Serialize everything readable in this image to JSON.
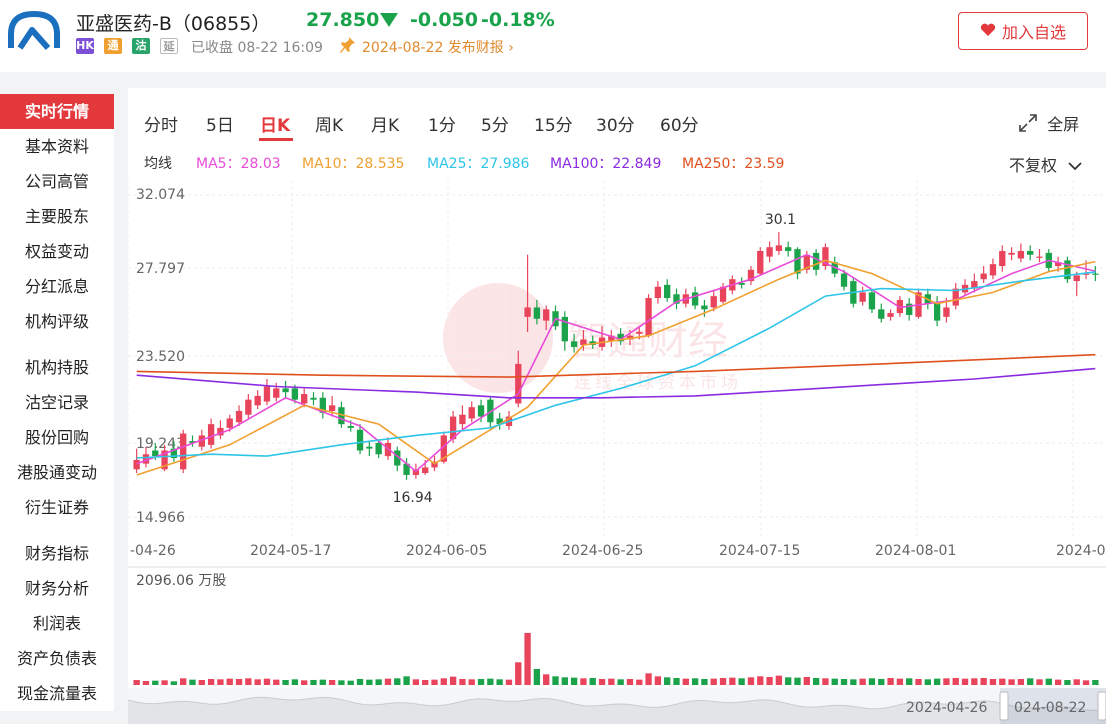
{
  "header": {
    "stock_name": "亚盛医药-B（06855）",
    "price": "27.850",
    "change": "-0.050",
    "change_pct": "-0.18%",
    "badges": [
      "HK",
      "通",
      "沽",
      "延"
    ],
    "badge_colors": [
      "#7b4fd6",
      "#f0a030",
      "#2aa36a",
      "#9a9a9a"
    ],
    "status": "已收盘 08-22 16:09",
    "report": "2024-08-22 发布财报 ›",
    "favorite_label": "加入自选",
    "down_color": "#1aa34a",
    "up_color": "#e8455d"
  },
  "sidebar": {
    "groups": [
      [
        "实时行情",
        "基本资料",
        "公司高管",
        "主要股东",
        "权益变动",
        "分红派息",
        "机构评级"
      ],
      [
        "机构持股",
        "沽空记录",
        "股份回购",
        "港股通变动",
        "衍生证券"
      ],
      [
        "财务指标",
        "财务分析",
        "利润表",
        "资产负债表",
        "现金流量表"
      ]
    ],
    "active": "实时行情"
  },
  "tabs": {
    "items": [
      "分时",
      "5日",
      "日K",
      "周K",
      "月K",
      "1分",
      "5分",
      "15分",
      "30分",
      "60分"
    ],
    "active": "日K",
    "fullscreen": "全屏"
  },
  "ma": {
    "label": "均线",
    "items": [
      {
        "label": "MA5：28.03",
        "color": "#e84bd8"
      },
      {
        "label": "MA10：28.535",
        "color": "#f0a030"
      },
      {
        "label": "MA25：27.986",
        "color": "#2ec5e8"
      },
      {
        "label": "MA100：22.849",
        "color": "#8a2be2"
      },
      {
        "label": "MA250：23.59",
        "color": "#e0501e"
      }
    ],
    "adjust": "不复权"
  },
  "chart_data": {
    "type": "candlestick",
    "y_ticks": [
      "32.074",
      "27.797",
      "23.520",
      "19.243",
      "14.966"
    ],
    "ylim": [
      14.966,
      32.074
    ],
    "x_ticks": [
      "-04-26",
      "2024-05-17",
      "2024-06-05",
      "2024-06-25",
      "2024-07-15",
      "2024-08-01",
      "2024-0"
    ],
    "annotations": {
      "high": "30.1",
      "low": "16.94"
    },
    "candles": [
      {
        "o": 17.5,
        "c": 18.0,
        "h": 18.6,
        "l": 17.3
      },
      {
        "o": 17.8,
        "c": 18.3,
        "h": 18.7,
        "l": 17.6
      },
      {
        "o": 18.5,
        "c": 18.2,
        "h": 18.9,
        "l": 18.0
      },
      {
        "o": 17.5,
        "c": 18.5,
        "h": 18.8,
        "l": 17.4
      },
      {
        "o": 18.6,
        "c": 18.1,
        "h": 19.0,
        "l": 17.9
      },
      {
        "o": 17.5,
        "c": 19.4,
        "h": 19.6,
        "l": 17.3
      },
      {
        "o": 19.0,
        "c": 18.9,
        "h": 19.3,
        "l": 18.7
      },
      {
        "o": 18.7,
        "c": 19.3,
        "h": 19.6,
        "l": 18.5
      },
      {
        "o": 18.8,
        "c": 19.9,
        "h": 20.2,
        "l": 18.6
      },
      {
        "o": 19.3,
        "c": 19.7,
        "h": 20.1,
        "l": 19.1
      },
      {
        "o": 19.7,
        "c": 20.2,
        "h": 20.4,
        "l": 19.5
      },
      {
        "o": 20.0,
        "c": 20.6,
        "h": 20.9,
        "l": 19.8
      },
      {
        "o": 20.4,
        "c": 21.2,
        "h": 21.5,
        "l": 20.2
      },
      {
        "o": 20.9,
        "c": 21.4,
        "h": 21.7,
        "l": 20.7
      },
      {
        "o": 21.1,
        "c": 21.9,
        "h": 22.3,
        "l": 20.9
      },
      {
        "o": 21.3,
        "c": 21.8,
        "h": 22.1,
        "l": 21.1
      },
      {
        "o": 21.8,
        "c": 21.6,
        "h": 22.2,
        "l": 21.3
      },
      {
        "o": 21.8,
        "c": 21.2,
        "h": 22.0,
        "l": 21.0
      },
      {
        "o": 21.0,
        "c": 21.5,
        "h": 21.8,
        "l": 20.8
      },
      {
        "o": 21.3,
        "c": 21.2,
        "h": 21.6,
        "l": 20.9
      },
      {
        "o": 21.3,
        "c": 20.5,
        "h": 21.6,
        "l": 20.2
      },
      {
        "o": 20.6,
        "c": 20.9,
        "h": 21.4,
        "l": 20.3
      },
      {
        "o": 20.8,
        "c": 19.9,
        "h": 21.1,
        "l": 19.7
      },
      {
        "o": 19.8,
        "c": 19.7,
        "h": 20.1,
        "l": 19.5
      },
      {
        "o": 19.6,
        "c": 18.5,
        "h": 19.9,
        "l": 18.3
      },
      {
        "o": 18.7,
        "c": 18.6,
        "h": 19.0,
        "l": 18.2
      },
      {
        "o": 18.9,
        "c": 18.3,
        "h": 19.1,
        "l": 18.1
      },
      {
        "o": 18.2,
        "c": 18.9,
        "h": 19.2,
        "l": 18.0
      },
      {
        "o": 18.5,
        "c": 17.7,
        "h": 18.7,
        "l": 17.4
      },
      {
        "o": 17.8,
        "c": 17.2,
        "h": 18.1,
        "l": 16.94
      },
      {
        "o": 17.2,
        "c": 17.5,
        "h": 17.8,
        "l": 17.0
      },
      {
        "o": 17.3,
        "c": 17.6,
        "h": 18.0,
        "l": 17.2
      },
      {
        "o": 17.6,
        "c": 17.9,
        "h": 18.2,
        "l": 17.4
      },
      {
        "o": 17.9,
        "c": 19.3,
        "h": 19.5,
        "l": 17.8
      },
      {
        "o": 19.1,
        "c": 20.3,
        "h": 20.6,
        "l": 18.9
      },
      {
        "o": 19.9,
        "c": 20.4,
        "h": 20.9,
        "l": 19.6
      },
      {
        "o": 20.2,
        "c": 20.8,
        "h": 21.1,
        "l": 20.0
      },
      {
        "o": 20.9,
        "c": 20.3,
        "h": 21.2,
        "l": 20.0
      },
      {
        "o": 21.2,
        "c": 20.0,
        "h": 21.4,
        "l": 19.7
      },
      {
        "o": 20.2,
        "c": 19.9,
        "h": 20.5,
        "l": 19.6
      },
      {
        "o": 19.8,
        "c": 20.3,
        "h": 20.6,
        "l": 19.6
      },
      {
        "o": 21.0,
        "c": 23.1,
        "h": 23.8,
        "l": 20.8
      },
      {
        "o": 25.6,
        "c": 26.1,
        "h": 28.9,
        "l": 24.8
      },
      {
        "o": 26.1,
        "c": 25.5,
        "h": 26.5,
        "l": 25.2
      },
      {
        "o": 25.4,
        "c": 26.0,
        "h": 26.2,
        "l": 24.9
      },
      {
        "o": 25.9,
        "c": 25.1,
        "h": 26.2,
        "l": 24.9
      },
      {
        "o": 25.6,
        "c": 24.3,
        "h": 25.9,
        "l": 23.8
      },
      {
        "o": 24.3,
        "c": 24.0,
        "h": 24.7,
        "l": 23.7
      },
      {
        "o": 24.1,
        "c": 24.4,
        "h": 24.9,
        "l": 23.8
      },
      {
        "o": 24.3,
        "c": 24.1,
        "h": 24.6,
        "l": 23.9
      },
      {
        "o": 24.0,
        "c": 24.5,
        "h": 25.1,
        "l": 23.8
      },
      {
        "o": 24.3,
        "c": 24.6,
        "h": 24.9,
        "l": 24.0
      },
      {
        "o": 24.7,
        "c": 24.3,
        "h": 25.0,
        "l": 24.1
      },
      {
        "o": 24.4,
        "c": 24.6,
        "h": 24.9,
        "l": 24.1
      },
      {
        "o": 24.7,
        "c": 24.8,
        "h": 25.1,
        "l": 24.4
      },
      {
        "o": 24.6,
        "c": 26.6,
        "h": 26.8,
        "l": 24.5
      },
      {
        "o": 26.6,
        "c": 27.2,
        "h": 27.5,
        "l": 26.3
      },
      {
        "o": 27.3,
        "c": 26.6,
        "h": 27.6,
        "l": 26.4
      },
      {
        "o": 26.8,
        "c": 26.3,
        "h": 27.1,
        "l": 26.0
      },
      {
        "o": 26.3,
        "c": 26.8,
        "h": 27.1,
        "l": 26.1
      },
      {
        "o": 26.9,
        "c": 26.2,
        "h": 27.2,
        "l": 26.0
      },
      {
        "o": 26.2,
        "c": 26.0,
        "h": 26.5,
        "l": 25.6
      },
      {
        "o": 26.1,
        "c": 26.7,
        "h": 27.0,
        "l": 25.9
      },
      {
        "o": 26.4,
        "c": 27.2,
        "h": 27.4,
        "l": 26.3
      },
      {
        "o": 27.0,
        "c": 27.6,
        "h": 27.8,
        "l": 26.8
      },
      {
        "o": 27.4,
        "c": 27.3,
        "h": 27.7,
        "l": 27.1
      },
      {
        "o": 27.5,
        "c": 28.1,
        "h": 28.3,
        "l": 27.3
      },
      {
        "o": 27.9,
        "c": 29.1,
        "h": 29.3,
        "l": 27.8
      },
      {
        "o": 28.8,
        "c": 29.3,
        "h": 29.6,
        "l": 28.5
      },
      {
        "o": 29.1,
        "c": 29.4,
        "h": 30.1,
        "l": 28.9
      },
      {
        "o": 29.3,
        "c": 29.1,
        "h": 29.6,
        "l": 28.8
      },
      {
        "o": 29.2,
        "c": 27.9,
        "h": 29.3,
        "l": 27.6
      },
      {
        "o": 28.1,
        "c": 28.9,
        "h": 29.1,
        "l": 27.9
      },
      {
        "o": 29.0,
        "c": 28.1,
        "h": 29.2,
        "l": 27.8
      },
      {
        "o": 28.3,
        "c": 29.3,
        "h": 29.5,
        "l": 28.1
      },
      {
        "o": 28.5,
        "c": 27.9,
        "h": 28.8,
        "l": 27.7
      },
      {
        "o": 27.9,
        "c": 27.2,
        "h": 28.1,
        "l": 27.0
      },
      {
        "o": 27.5,
        "c": 26.3,
        "h": 27.7,
        "l": 26.1
      },
      {
        "o": 26.4,
        "c": 26.9,
        "h": 27.2,
        "l": 26.2
      },
      {
        "o": 26.9,
        "c": 26.0,
        "h": 27.1,
        "l": 25.8
      },
      {
        "o": 26.0,
        "c": 25.5,
        "h": 26.3,
        "l": 25.3
      },
      {
        "o": 25.6,
        "c": 25.8,
        "h": 26.0,
        "l": 25.4
      },
      {
        "o": 25.8,
        "c": 26.5,
        "h": 26.7,
        "l": 25.6
      },
      {
        "o": 26.3,
        "c": 25.7,
        "h": 26.6,
        "l": 25.4
      },
      {
        "o": 25.6,
        "c": 26.9,
        "h": 27.1,
        "l": 25.5
      },
      {
        "o": 26.8,
        "c": 26.3,
        "h": 27.1,
        "l": 26.0
      },
      {
        "o": 26.4,
        "c": 25.4,
        "h": 26.7,
        "l": 25.1
      },
      {
        "o": 25.6,
        "c": 26.1,
        "h": 26.6,
        "l": 25.3
      },
      {
        "o": 26.2,
        "c": 27.1,
        "h": 27.4,
        "l": 26.0
      },
      {
        "o": 26.9,
        "c": 27.3,
        "h": 27.6,
        "l": 26.7
      },
      {
        "o": 27.1,
        "c": 27.5,
        "h": 27.9,
        "l": 26.9
      },
      {
        "o": 27.6,
        "c": 27.9,
        "h": 28.3,
        "l": 27.4
      },
      {
        "o": 27.8,
        "c": 28.4,
        "h": 28.7,
        "l": 27.6
      },
      {
        "o": 28.3,
        "c": 29.1,
        "h": 29.4,
        "l": 28.0
      },
      {
        "o": 28.9,
        "c": 29.0,
        "h": 29.3,
        "l": 28.6
      },
      {
        "o": 28.7,
        "c": 29.1,
        "h": 29.5,
        "l": 28.5
      },
      {
        "o": 29.1,
        "c": 28.9,
        "h": 29.4,
        "l": 28.6
      },
      {
        "o": 28.8,
        "c": 28.8,
        "h": 29.2,
        "l": 28.5
      },
      {
        "o": 29.0,
        "c": 28.2,
        "h": 29.2,
        "l": 28.0
      },
      {
        "o": 28.3,
        "c": 28.5,
        "h": 28.8,
        "l": 28.0
      },
      {
        "o": 28.6,
        "c": 27.6,
        "h": 28.8,
        "l": 27.4
      },
      {
        "o": 27.5,
        "c": 27.8,
        "h": 28.0,
        "l": 26.7
      },
      {
        "o": 27.9,
        "c": 27.9,
        "h": 28.6,
        "l": 27.6
      },
      {
        "o": 27.9,
        "c": 27.85,
        "h": 28.3,
        "l": 27.5
      }
    ],
    "ma_series": [
      {
        "name": "MA5",
        "color": "#e84bd8",
        "points": [
          [
            0,
            17.8
          ],
          [
            10,
            19.6
          ],
          [
            16,
            21.3
          ],
          [
            24,
            19.8
          ],
          [
            30,
            17.4
          ],
          [
            35,
            19.6
          ],
          [
            41,
            21.5
          ],
          [
            45,
            25.5
          ],
          [
            52,
            24.4
          ],
          [
            58,
            26.4
          ],
          [
            66,
            27.6
          ],
          [
            72,
            28.9
          ],
          [
            76,
            28.0
          ],
          [
            82,
            26.1
          ],
          [
            88,
            26.5
          ],
          [
            94,
            27.9
          ],
          [
            98,
            28.6
          ],
          [
            103,
            28.03
          ]
        ]
      },
      {
        "name": "MA10",
        "color": "#f0a030",
        "points": [
          [
            0,
            17.2
          ],
          [
            10,
            18.8
          ],
          [
            18,
            20.9
          ],
          [
            26,
            19.9
          ],
          [
            32,
            17.8
          ],
          [
            38,
            19.6
          ],
          [
            42,
            20.8
          ],
          [
            48,
            24.1
          ],
          [
            55,
            24.6
          ],
          [
            62,
            26.0
          ],
          [
            69,
            27.6
          ],
          [
            74,
            28.6
          ],
          [
            79,
            27.9
          ],
          [
            86,
            26.3
          ],
          [
            92,
            26.9
          ],
          [
            98,
            28.0
          ],
          [
            103,
            28.535
          ]
        ]
      },
      {
        "name": "MA25",
        "color": "#2ec5e8",
        "points": [
          [
            0,
            18.1
          ],
          [
            8,
            18.3
          ],
          [
            14,
            18.2
          ],
          [
            22,
            18.8
          ],
          [
            30,
            19.3
          ],
          [
            38,
            19.7
          ],
          [
            45,
            20.9
          ],
          [
            52,
            21.8
          ],
          [
            60,
            23.0
          ],
          [
            68,
            25.0
          ],
          [
            74,
            26.7
          ],
          [
            80,
            27.1
          ],
          [
            88,
            27.0
          ],
          [
            95,
            27.5
          ],
          [
            103,
            27.986
          ]
        ]
      },
      {
        "name": "MA100",
        "color": "#8a2be2",
        "points": [
          [
            0,
            22.5
          ],
          [
            15,
            21.9
          ],
          [
            30,
            21.6
          ],
          [
            40,
            21.3
          ],
          [
            50,
            21.3
          ],
          [
            60,
            21.4
          ],
          [
            70,
            21.7
          ],
          [
            80,
            22.0
          ],
          [
            90,
            22.3
          ],
          [
            103,
            22.849
          ]
        ]
      },
      {
        "name": "MA250",
        "color": "#e0501e",
        "points": [
          [
            0,
            22.7
          ],
          [
            20,
            22.5
          ],
          [
            40,
            22.4
          ],
          [
            60,
            22.7
          ],
          [
            80,
            23.1
          ],
          [
            103,
            23.59
          ]
        ]
      }
    ],
    "volume": {
      "label": "2096.06 万股",
      "max": 2096.06,
      "values": [
        150,
        120,
        130,
        140,
        110,
        200,
        160,
        150,
        180,
        170,
        190,
        180,
        200,
        170,
        190,
        160,
        150,
        170,
        140,
        150,
        160,
        150,
        140,
        130,
        180,
        160,
        170,
        190,
        200,
        260,
        170,
        150,
        160,
        200,
        250,
        180,
        170,
        180,
        190,
        170,
        160,
        680,
        1560,
        480,
        320,
        260,
        230,
        220,
        200,
        210,
        180,
        190,
        170,
        180,
        160,
        350,
        260,
        230,
        210,
        190,
        200,
        180,
        190,
        210,
        220,
        200,
        230,
        260,
        240,
        280,
        230,
        220,
        240,
        210,
        200,
        190,
        180,
        170,
        190,
        200,
        180,
        210,
        190,
        200,
        180,
        170,
        190,
        200,
        210,
        190,
        200,
        210,
        180,
        190,
        170,
        180,
        200,
        170,
        190,
        160,
        150,
        170,
        140,
        150
      ]
    },
    "navigator": {
      "start": "2024-04-26",
      "end": "024-08-22"
    }
  },
  "watermark": {
    "main": "智通财经",
    "sub": "连线全球资本市场"
  }
}
